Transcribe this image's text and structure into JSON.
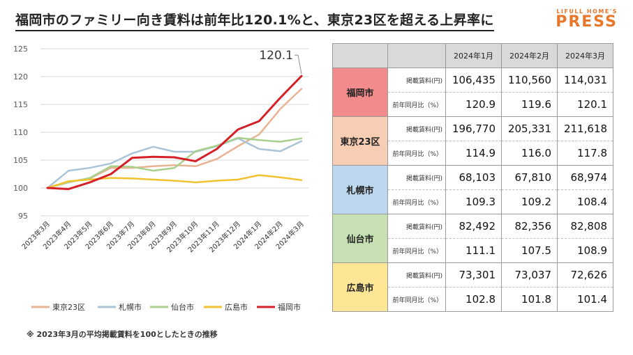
{
  "header": {
    "title": "福岡市のファミリー向き賃料は前年比120.1%と、東京23区を超える上昇率に",
    "logo_sub": "LIFULL HOME'S",
    "logo_main": "PRESS"
  },
  "chart_data": {
    "type": "line",
    "categories": [
      "2023年3月",
      "2023年4月",
      "2023年5月",
      "2023年6月",
      "2023年7月",
      "2023年8月",
      "2023年9月",
      "2023年10月",
      "2023年11月",
      "2023年12月",
      "2024年1月",
      "2024年2月",
      "2024年3月"
    ],
    "ylim": [
      95,
      125
    ],
    "yticks": [
      95,
      100,
      105,
      110,
      115,
      120,
      125
    ],
    "grid": true,
    "legend_position": "bottom",
    "series": [
      {
        "name": "東京23区",
        "color": "#e8b393",
        "values": [
          100,
          101.1,
          101.7,
          103.6,
          103.6,
          103.9,
          104.1,
          103.9,
          105.2,
          107.5,
          109.6,
          114.2,
          117.8
        ]
      },
      {
        "name": "札幌市",
        "color": "#a9c4d8",
        "values": [
          100,
          103.1,
          103.6,
          104.4,
          106.2,
          107.4,
          106.5,
          106.5,
          107.5,
          108.9,
          107.0,
          106.6,
          108.4
        ]
      },
      {
        "name": "仙台市",
        "color": "#a8d08d",
        "values": [
          100,
          101.0,
          101.8,
          103.9,
          103.8,
          103.1,
          103.6,
          106.6,
          107.6,
          109.0,
          108.6,
          108.3,
          108.9
        ]
      },
      {
        "name": "広島市",
        "color": "#f2c12e",
        "values": [
          100,
          101.2,
          101.5,
          101.8,
          101.7,
          101.5,
          101.3,
          101.0,
          101.3,
          101.5,
          102.3,
          101.9,
          101.4
        ]
      },
      {
        "name": "福岡市",
        "color": "#d62027",
        "values": [
          100,
          99.8,
          101.0,
          102.5,
          105.4,
          105.6,
          105.5,
          104.8,
          107.0,
          110.5,
          112.0,
          116.2,
          120.1
        ]
      }
    ],
    "annotation": "120.1"
  },
  "footnote": "※ 2023年3月の平均掲載賃料を100としたときの推移",
  "table": {
    "months": [
      "2024年1月",
      "2024年2月",
      "2024年3月"
    ],
    "rent_label": "掲載賃料(円)",
    "yoy_label": "前年同月比（%）",
    "cities": [
      {
        "name": "福岡市",
        "color": "#f28b8b",
        "rent": [
          "106,435",
          "110,560",
          "114,031"
        ],
        "yoy": [
          "120.9",
          "119.6",
          "120.1"
        ]
      },
      {
        "name": "東京23区",
        "color": "#f7cdb4",
        "rent": [
          "196,770",
          "205,331",
          "211,618"
        ],
        "yoy": [
          "114.9",
          "116.0",
          "117.8"
        ]
      },
      {
        "name": "札幌市",
        "color": "#bdd7ee",
        "rent": [
          "68,103",
          "67,810",
          "68,974"
        ],
        "yoy": [
          "109.3",
          "109.2",
          "108.4"
        ]
      },
      {
        "name": "仙台市",
        "color": "#c6e0b4",
        "rent": [
          "82,492",
          "82,356",
          "82,808"
        ],
        "yoy": [
          "111.1",
          "107.5",
          "108.9"
        ]
      },
      {
        "name": "広島市",
        "color": "#fde596",
        "rent": [
          "73,301",
          "73,037",
          "72,626"
        ],
        "yoy": [
          "102.8",
          "101.8",
          "101.4"
        ]
      }
    ]
  }
}
